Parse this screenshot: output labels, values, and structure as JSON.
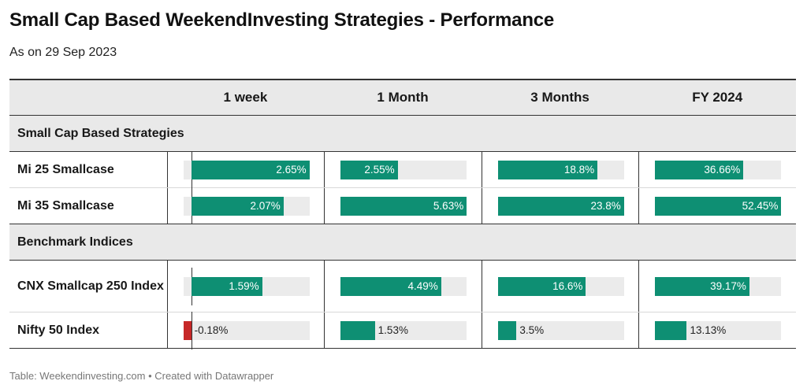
{
  "title": "Small Cap Based WeekendInvesting Strategies - Performance",
  "subtitle": "As on 29 Sep 2023",
  "columns": [
    "1 week",
    "1 Month",
    "3 Months",
    "FY 2024"
  ],
  "footer": "Table: Weekendinvesting.com • Created with Datawrapper",
  "colors": {
    "positive": "#0e8f73",
    "negative": "#c62828",
    "track": "#ebebeb"
  },
  "chart_data": {
    "type": "table",
    "columns": [
      "1 week",
      "1 Month",
      "3 Months",
      "FY 2024"
    ],
    "column_max": [
      2.65,
      5.63,
      23.8,
      52.45
    ],
    "groups": [
      {
        "label": "Small Cap Based Strategies",
        "rows": [
          {
            "name": "Mi 25 Smallcase",
            "values": [
              2.65,
              2.55,
              18.8,
              36.66
            ],
            "labels": [
              "2.65%",
              "2.55%",
              "18.8%",
              "36.66%"
            ]
          },
          {
            "name": "Mi 35 Smallcase",
            "values": [
              2.07,
              5.63,
              23.8,
              52.45
            ],
            "labels": [
              "2.07%",
              "5.63%",
              "23.8%",
              "52.45%"
            ]
          }
        ]
      },
      {
        "label": "Benchmark Indices",
        "rows": [
          {
            "name": "CNX Smallcap 250 Index",
            "values": [
              1.59,
              4.49,
              16.6,
              39.17
            ],
            "labels": [
              "1.59%",
              "4.49%",
              "16.6%",
              "39.17%"
            ]
          },
          {
            "name": "Nifty 50 Index",
            "values": [
              -0.18,
              1.53,
              3.5,
              13.13
            ],
            "labels": [
              "-0.18%",
              "1.53%",
              "3.5%",
              "13.13%"
            ]
          }
        ]
      }
    ]
  }
}
